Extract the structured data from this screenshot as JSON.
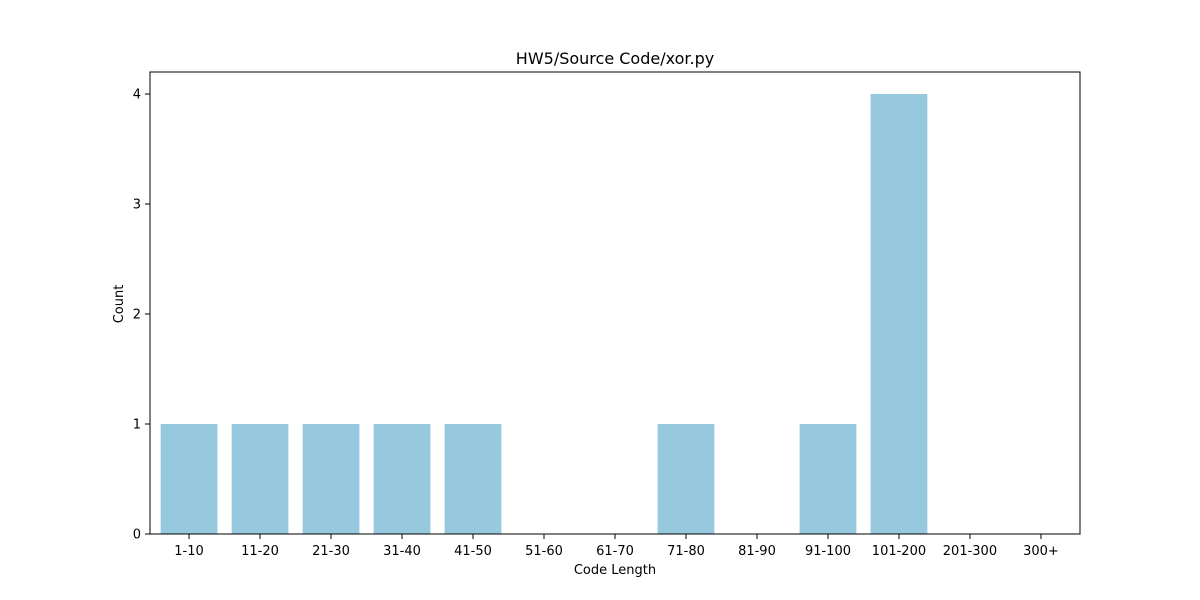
{
  "chart_data": {
    "type": "bar",
    "title": "HW5/Source Code/xor.py",
    "xlabel": "Code Length",
    "ylabel": "Count",
    "categories": [
      "1-10",
      "11-20",
      "21-30",
      "31-40",
      "41-50",
      "51-60",
      "61-70",
      "71-80",
      "81-90",
      "91-100",
      "101-200",
      "201-300",
      "300+"
    ],
    "values": [
      1,
      1,
      1,
      1,
      1,
      0,
      0,
      1,
      0,
      1,
      4,
      0,
      0
    ],
    "ylim": [
      0,
      4.2
    ],
    "yticks": [
      0,
      1,
      2,
      3,
      4
    ],
    "grid": false,
    "bar_color": "#96c9de"
  }
}
